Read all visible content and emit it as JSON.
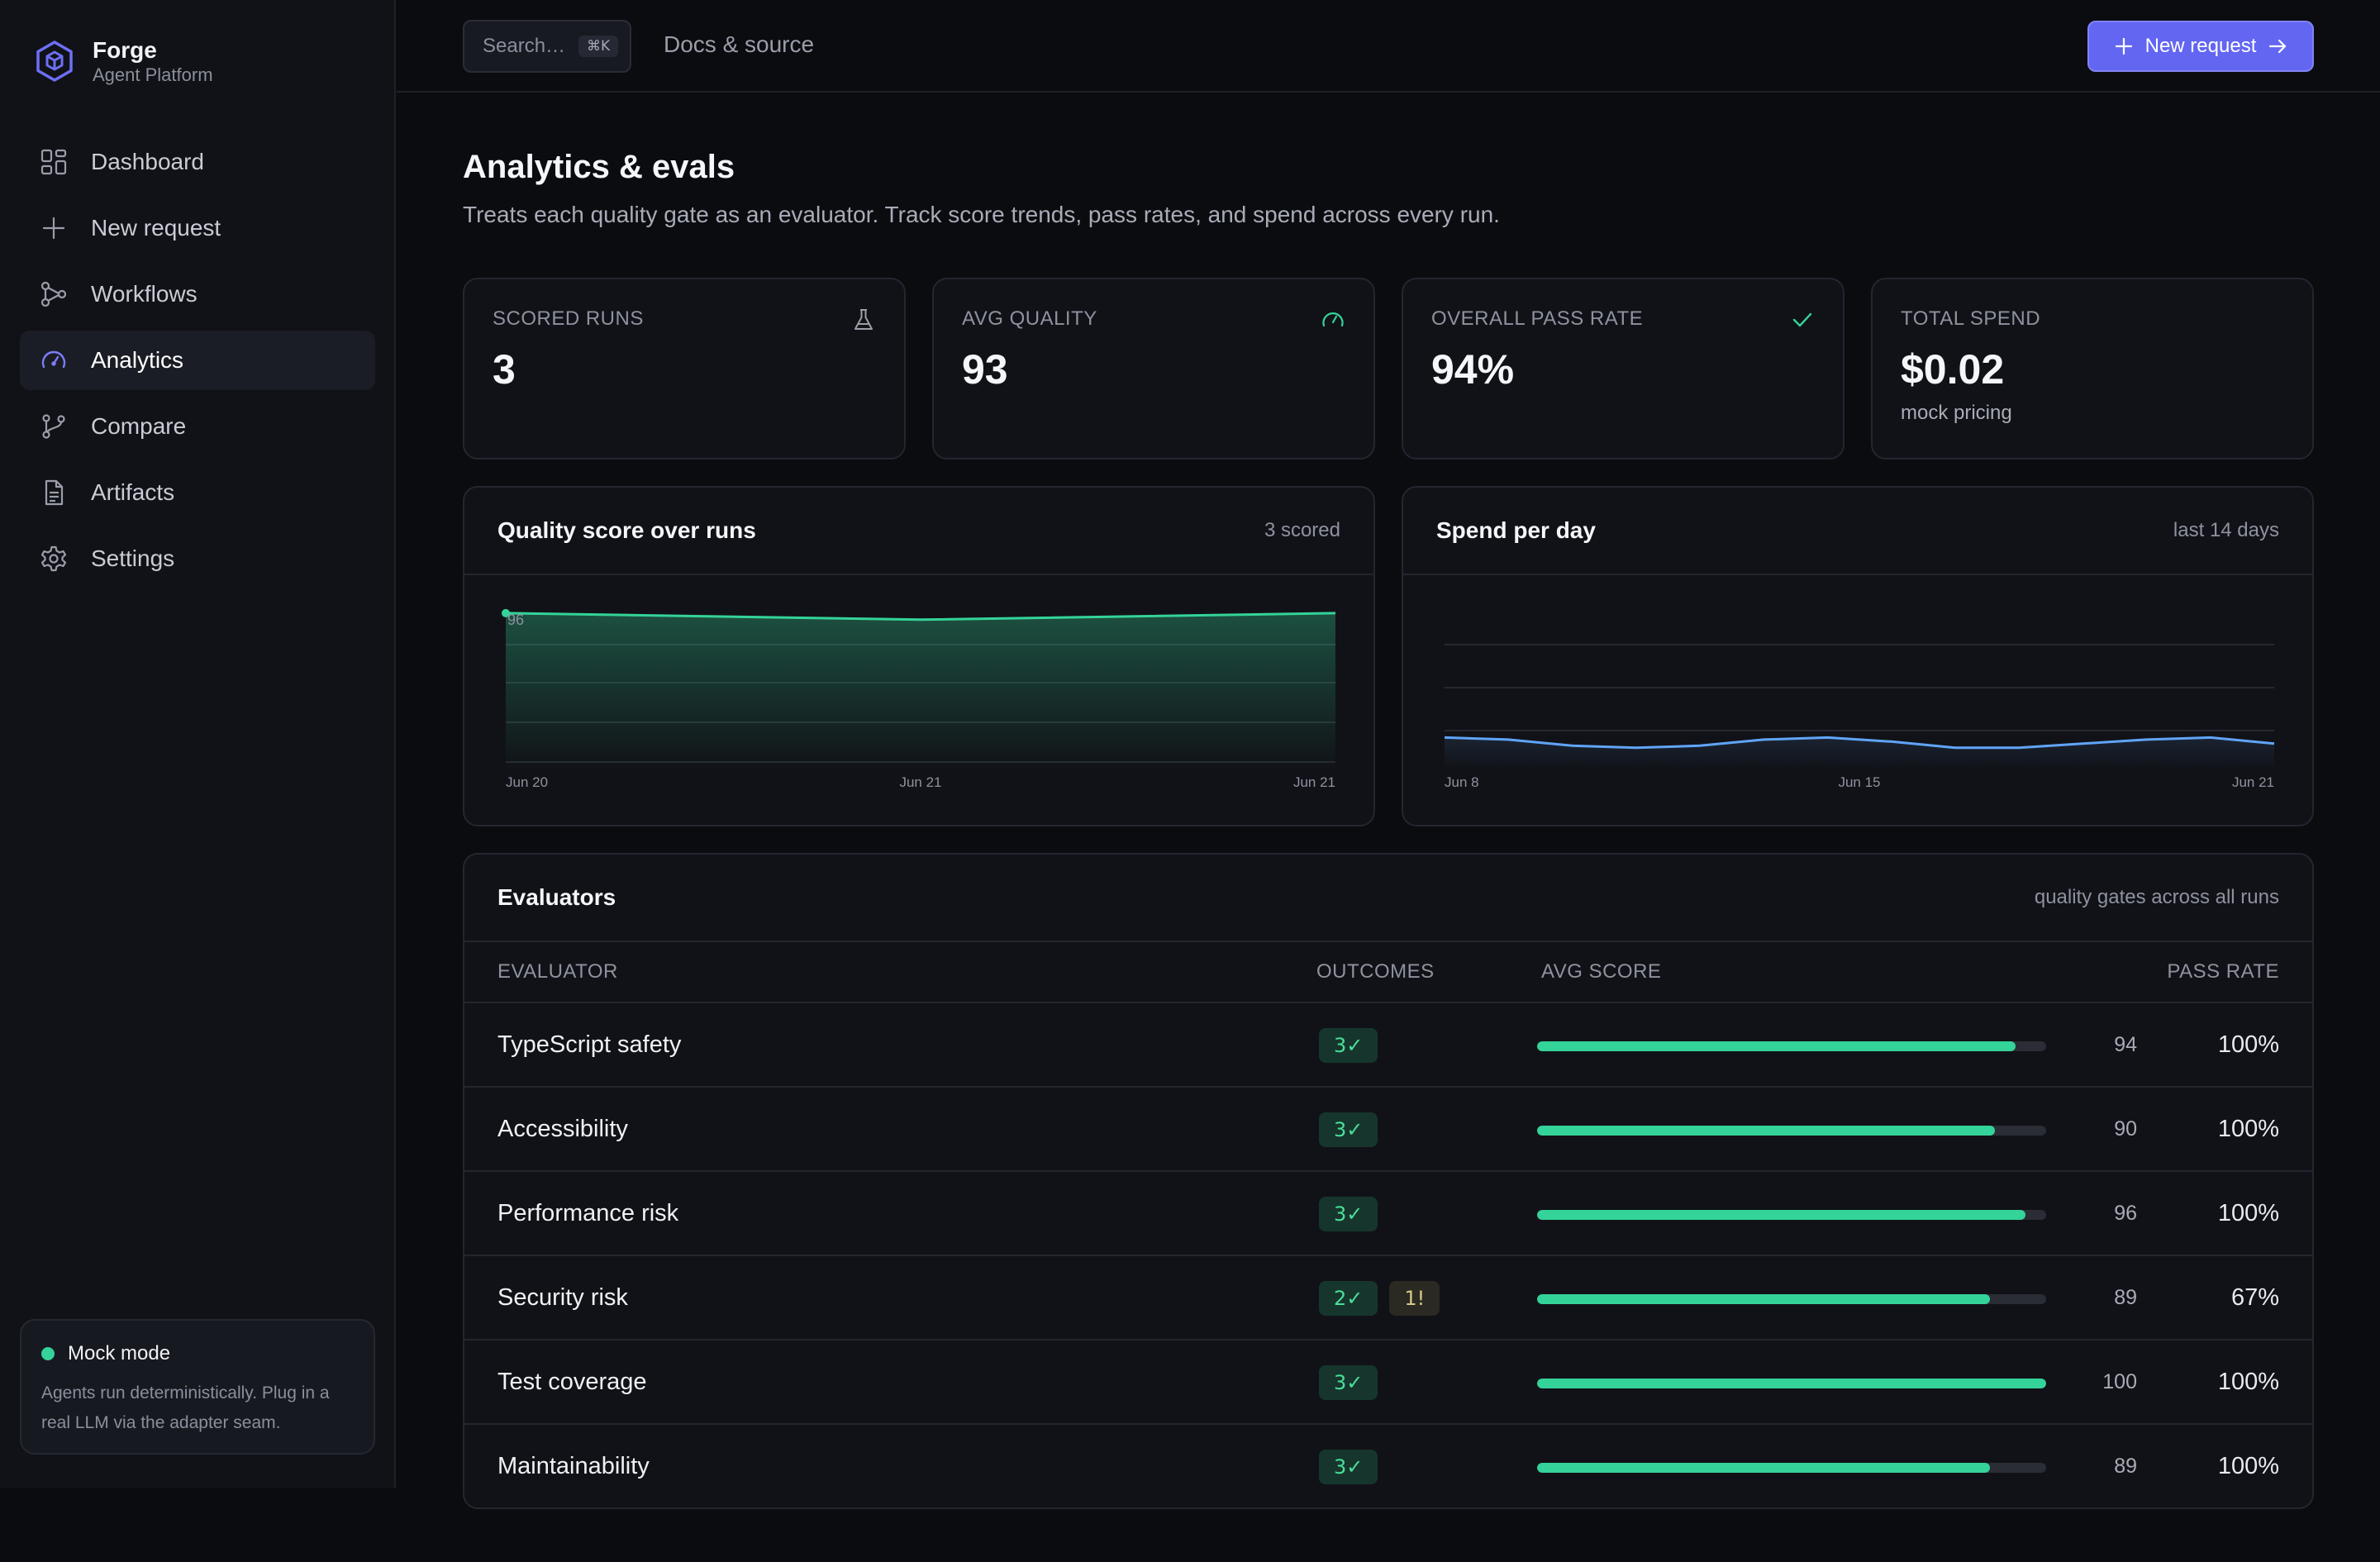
{
  "brand": {
    "title": "Forge",
    "subtitle": "Agent Platform"
  },
  "sidebar": {
    "items": [
      {
        "label": "Dashboard",
        "icon": "dashboard-icon"
      },
      {
        "label": "New request",
        "icon": "plus-icon"
      },
      {
        "label": "Workflows",
        "icon": "workflow-icon"
      },
      {
        "label": "Analytics",
        "icon": "gauge-icon",
        "active": true
      },
      {
        "label": "Compare",
        "icon": "git-branch-icon"
      },
      {
        "label": "Artifacts",
        "icon": "document-icon"
      },
      {
        "label": "Settings",
        "icon": "gear-icon"
      }
    ],
    "mock": {
      "title": "Mock mode",
      "text_line1": "Agents run deterministically. Plug in a",
      "text_line2": "real LLM via the adapter seam."
    }
  },
  "topbar": {
    "search_placeholder": "Search…",
    "search_shortcut": "⌘K",
    "docs_link": "Docs & source",
    "new_request": "New request"
  },
  "page": {
    "title": "Analytics & evals",
    "subtitle": "Treats each quality gate as an evaluator. Track score trends, pass rates, and spend across every run."
  },
  "stats": [
    {
      "label": "SCORED RUNS",
      "value": "3",
      "note": "",
      "icon": "flask-icon"
    },
    {
      "label": "AVG QUALITY",
      "value": "93",
      "note": "",
      "icon": "gauge-icon"
    },
    {
      "label": "OVERALL PASS RATE",
      "value": "94%",
      "note": "",
      "icon": "check-icon"
    },
    {
      "label": "TOTAL SPEND",
      "value": "$0.02",
      "note": "mock pricing",
      "icon": ""
    }
  ],
  "chart_data": [
    {
      "type": "area",
      "title": "Quality score over runs",
      "meta": "3 scored",
      "x": [
        "Jun 20",
        "Jun 21",
        "Jun 21"
      ],
      "series": [
        {
          "values": [
            96,
            92,
            96
          ]
        }
      ],
      "point_label": "96",
      "ylim": [
        0,
        100
      ],
      "grid": true,
      "color": "#34d399"
    },
    {
      "type": "line",
      "title": "Spend per day",
      "meta": "last 14 days",
      "x_ticks": [
        "Jun 8",
        "Jun 15",
        "Jun 21"
      ],
      "series": [
        {
          "values": [
            0.0016,
            0.0015,
            0.0012,
            0.0011,
            0.0012,
            0.0015,
            0.0016,
            0.0014,
            0.0011,
            0.0011,
            0.0013,
            0.0015,
            0.0016,
            0.0013
          ]
        }
      ],
      "ylim": [
        0,
        0.008
      ],
      "grid": true,
      "color": "#60a5fa"
    }
  ],
  "evaluators": {
    "title": "Evaluators",
    "meta": "quality gates across all runs",
    "headers": {
      "name": "EVALUATOR",
      "outcomes": "OUTCOMES",
      "avg": "AVG SCORE",
      "pass": "PASS RATE"
    },
    "rows": [
      {
        "name": "TypeScript safety",
        "ok": "3✓",
        "warn": "",
        "score": 94,
        "score_label": "94",
        "pass": "100%"
      },
      {
        "name": "Accessibility",
        "ok": "3✓",
        "warn": "",
        "score": 90,
        "score_label": "90",
        "pass": "100%"
      },
      {
        "name": "Performance risk",
        "ok": "3✓",
        "warn": "",
        "score": 96,
        "score_label": "96",
        "pass": "100%"
      },
      {
        "name": "Security risk",
        "ok": "2✓",
        "warn": "1!",
        "score": 89,
        "score_label": "89",
        "pass": "67%"
      },
      {
        "name": "Test coverage",
        "ok": "3✓",
        "warn": "",
        "score": 100,
        "score_label": "100",
        "pass": "100%"
      },
      {
        "name": "Maintainability",
        "ok": "3✓",
        "warn": "",
        "score": 89,
        "score_label": "89",
        "pass": "100%"
      }
    ]
  }
}
